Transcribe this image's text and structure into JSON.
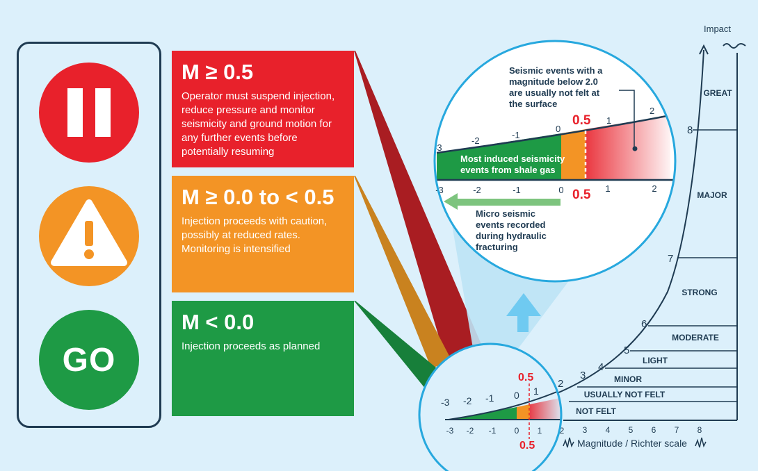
{
  "boxes": [
    {
      "heading": "M ≥ 0.5",
      "text": "Operator must suspend injection, reduce pressure and monitor seismicity and ground motion for any further events before potentially resuming",
      "color": "#e8212b"
    },
    {
      "heading": "M ≥ 0.0 to < 0.5",
      "text": "Injection proceeds with caution, possibly at reduced rates. Monitoring is intensified",
      "color": "#f39425"
    },
    {
      "heading": "M < 0.0",
      "text": "Injection proceeds as planned",
      "color": "#1e9a45"
    }
  ],
  "lights": {
    "stop_icon": "pause-icon",
    "caution_icon": "warning-icon",
    "go_label": "GO"
  },
  "zoom": {
    "note": "Seismic events with a magnitude below 2.0 are usually not felt at the surface",
    "threshold": "0.5",
    "threshold_bottom": "0.5",
    "green_label": "Most induced seismicity events from shale gas",
    "micro_label": "Micro seismic events recorded during hydraulic fracturing",
    "ticks": [
      "-3",
      "-2",
      "-1",
      "0",
      "1",
      "2"
    ]
  },
  "small": {
    "threshold": "0.5",
    "threshold_bottom": "0.5",
    "ticks_top": [
      "-3",
      "-2",
      "-1",
      "0",
      "1"
    ],
    "ticks_bottom": [
      "-3",
      "-2",
      "-1",
      "0",
      "1",
      "2"
    ]
  },
  "scale": {
    "y_label": "Impact",
    "x_label": "Magnitude / Richter scale",
    "x_ticks": [
      "3",
      "4",
      "5",
      "6",
      "7",
      "8"
    ],
    "curve_labels": [
      "2",
      "3",
      "4",
      "5",
      "6",
      "7",
      "8"
    ],
    "categories": [
      "GREAT",
      "MAJOR",
      "STRONG",
      "MODERATE",
      "LIGHT",
      "MINOR",
      "USUALLY NOT FELT",
      "NOT FELT"
    ]
  },
  "colors": {
    "red": "#e8212b",
    "orange": "#f39425",
    "green": "#1e9a45",
    "navy": "#1f3b52",
    "ring": "#27a8de"
  }
}
